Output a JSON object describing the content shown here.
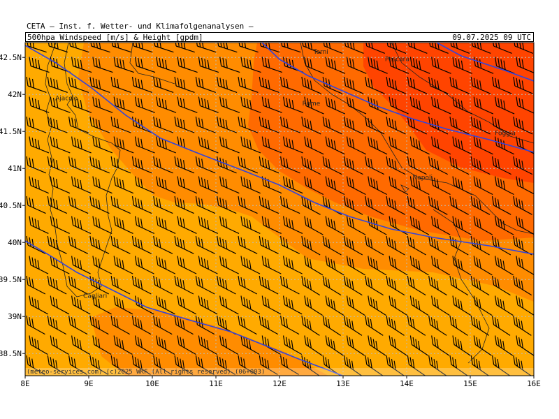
{
  "header": {
    "organization": "CETA — Inst. f. Wetter- und Klimafolgenanalysen —",
    "title": "500hpa_Windspeed_[m/s]_&_Height_[gpdm]",
    "datetime": "09.07.2025 09 UTC"
  },
  "footer": {
    "credit": "(meteo-services.com) (c)2025 WKF (All rights reserved) (06+003)"
  },
  "axes": {
    "lon_labels": [
      "8E",
      "9E",
      "10E",
      "11E",
      "12E",
      "13E",
      "14E",
      "15E",
      "16E"
    ],
    "lat_labels": [
      "42.5N",
      "42N",
      "41.5N",
      "41N",
      "40.5N",
      "40N",
      "39.5N",
      "39N",
      "38.5N"
    ]
  },
  "cities": [
    {
      "name": "Terni",
      "lon": 12.65,
      "lat": 42.55
    },
    {
      "name": "Pescara",
      "lon": 13.85,
      "lat": 42.45
    },
    {
      "name": "Ajaccio",
      "lon": 8.65,
      "lat": 41.92
    },
    {
      "name": "Rome",
      "lon": 12.5,
      "lat": 41.85
    },
    {
      "name": "Foggia",
      "lon": 15.55,
      "lat": 41.45
    },
    {
      "name": "Napoli",
      "lon": 14.25,
      "lat": 40.85
    },
    {
      "name": "Cagliari",
      "lon": 9.1,
      "lat": 39.25
    }
  ],
  "colors": {
    "band1": "#ffaa00",
    "band2": "#ff8c00",
    "band3": "#ff6a00",
    "band4": "#ff4400",
    "contour": "#3344dd",
    "grid": "#bbbbbb"
  }
}
